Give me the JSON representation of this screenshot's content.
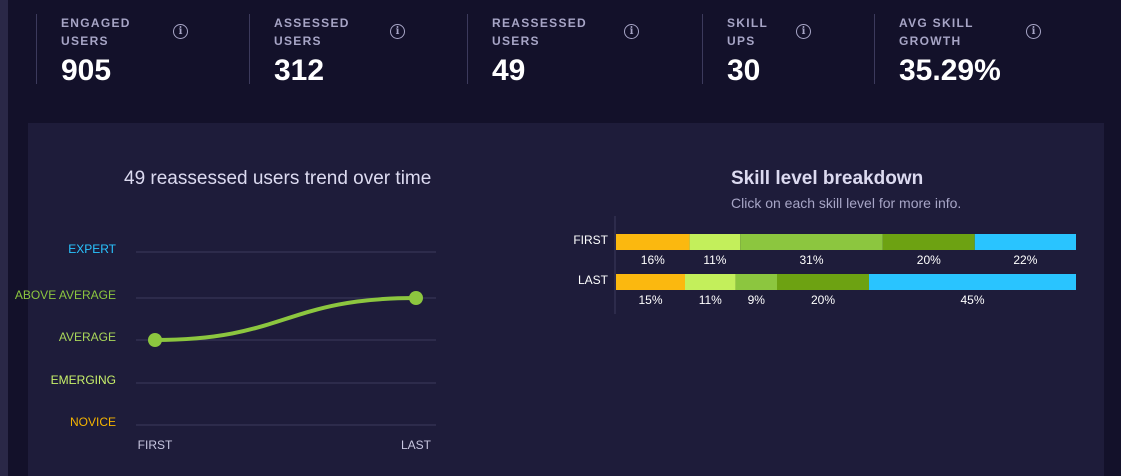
{
  "stats": [
    {
      "label": "ENGAGED USERS",
      "value": "905"
    },
    {
      "label": "ASSESSED USERS",
      "value": "312"
    },
    {
      "label": "REASSESSED USERS",
      "value": "49"
    },
    {
      "label": "SKILL UPS",
      "value": "30"
    },
    {
      "label": "AVG SKILL GROWTH",
      "value": "35.29%"
    }
  ],
  "info_icon": "info-icon",
  "trend": {
    "title": "49 reassessed users trend over time",
    "levels": [
      {
        "label": "EXPERT",
        "color": "#29c4ff"
      },
      {
        "label": "ABOVE AVERAGE",
        "color": "#8cc63f"
      },
      {
        "label": "AVERAGE",
        "color": "#a9d65a"
      },
      {
        "label": "EMERGING",
        "color": "#c8f06a"
      },
      {
        "label": "NOVICE",
        "color": "#f5b400"
      }
    ],
    "x_labels": [
      "FIRST",
      "LAST"
    ],
    "line_color": "#8cc63f"
  },
  "chart_data": {
    "type": "line",
    "title": "49 reassessed users trend over time",
    "x": [
      "FIRST",
      "LAST"
    ],
    "y_categories": [
      "NOVICE",
      "EMERGING",
      "AVERAGE",
      "ABOVE AVERAGE",
      "EXPERT"
    ],
    "series": [
      {
        "values": [
          "AVERAGE",
          "ABOVE AVERAGE"
        ]
      }
    ]
  },
  "breakdown": {
    "title": "Skill level breakdown",
    "subtitle": "Click on each skill level for more info.",
    "colors": [
      "#fbb80f",
      "#c3ef5b",
      "#8cc63f",
      "#6da212",
      "#29c4ff"
    ],
    "rows": [
      {
        "label": "FIRST",
        "values": [
          16,
          11,
          31,
          20,
          22
        ]
      },
      {
        "label": "LAST",
        "values": [
          15,
          11,
          9,
          20,
          45
        ]
      }
    ]
  }
}
